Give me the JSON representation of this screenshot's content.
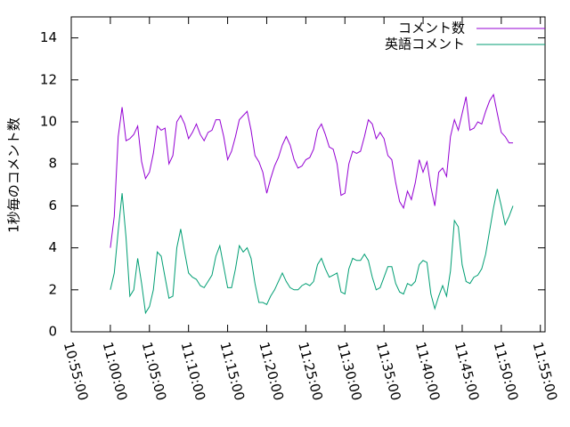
{
  "chart_data": {
    "type": "line",
    "ylabel": "1秒毎のコメント数",
    "x": [
      "11:00:00",
      "11:00:30",
      "11:01:00",
      "11:01:30",
      "11:02:00",
      "11:02:30",
      "11:03:00",
      "11:03:30",
      "11:04:00",
      "11:04:30",
      "11:05:00",
      "11:05:30",
      "11:06:00",
      "11:06:30",
      "11:07:00",
      "11:07:30",
      "11:08:00",
      "11:08:30",
      "11:09:00",
      "11:09:30",
      "11:10:00",
      "11:10:30",
      "11:11:00",
      "11:11:30",
      "11:12:00",
      "11:12:30",
      "11:13:00",
      "11:13:30",
      "11:14:00",
      "11:14:30",
      "11:15:00",
      "11:15:30",
      "11:16:00",
      "11:16:30",
      "11:17:00",
      "11:17:30",
      "11:18:00",
      "11:18:30",
      "11:19:00",
      "11:19:30",
      "11:20:00",
      "11:20:30",
      "11:21:00",
      "11:21:30",
      "11:22:00",
      "11:22:30",
      "11:23:00",
      "11:23:30",
      "11:24:00",
      "11:24:30",
      "11:25:00",
      "11:25:30",
      "11:26:00",
      "11:26:30",
      "11:27:00",
      "11:27:30",
      "11:28:00",
      "11:28:30",
      "11:29:00",
      "11:29:30",
      "11:30:00",
      "11:30:30",
      "11:31:00",
      "11:31:30",
      "11:32:00",
      "11:32:30",
      "11:33:00",
      "11:33:30",
      "11:34:00",
      "11:34:30",
      "11:35:00",
      "11:35:30",
      "11:36:00",
      "11:36:30",
      "11:37:00",
      "11:37:30",
      "11:38:00",
      "11:38:30",
      "11:39:00",
      "11:39:30",
      "11:40:00",
      "11:40:30",
      "11:41:00",
      "11:41:30",
      "11:42:00",
      "11:42:30",
      "11:43:00",
      "11:43:30",
      "11:44:00",
      "11:44:30",
      "11:45:00",
      "11:45:30",
      "11:46:00",
      "11:46:30",
      "11:47:00",
      "11:47:30",
      "11:48:00",
      "11:48:30",
      "11:49:00",
      "11:49:30",
      "11:50:00",
      "11:50:30",
      "11:51:00",
      "11:51:30"
    ],
    "series": [
      {
        "name": "コメント数",
        "color": "#9400d3",
        "values": [
          4.0,
          5.5,
          9.3,
          10.7,
          9.1,
          9.2,
          9.4,
          9.8,
          8.1,
          7.3,
          7.6,
          8.5,
          9.8,
          9.6,
          9.7,
          8.0,
          8.4,
          10.0,
          10.3,
          9.9,
          9.2,
          9.5,
          9.9,
          9.4,
          9.1,
          9.5,
          9.6,
          10.1,
          10.1,
          9.3,
          8.2,
          8.6,
          9.3,
          10.1,
          10.3,
          10.5,
          9.6,
          8.4,
          8.1,
          7.6,
          6.6,
          7.3,
          7.9,
          8.3,
          8.9,
          9.3,
          8.9,
          8.2,
          7.8,
          7.9,
          8.2,
          8.3,
          8.7,
          9.6,
          9.9,
          9.4,
          8.8,
          8.7,
          8.0,
          6.5,
          6.6,
          8.0,
          8.6,
          8.5,
          8.6,
          9.3,
          10.1,
          9.9,
          9.2,
          9.5,
          9.2,
          8.4,
          8.2,
          7.1,
          6.2,
          5.9,
          6.7,
          6.3,
          7.1,
          8.2,
          7.6,
          8.1,
          6.9,
          6.0,
          7.6,
          7.8,
          7.4,
          9.3,
          10.1,
          9.6,
          10.4,
          11.2,
          9.6,
          9.7,
          10.0,
          9.9,
          10.5,
          11.0,
          11.3,
          10.4,
          9.5,
          9.3,
          9.0,
          9.0
        ]
      },
      {
        "name": "英語コメント",
        "color": "#009e73",
        "values": [
          2.0,
          2.8,
          4.8,
          6.6,
          4.5,
          1.7,
          2.0,
          3.5,
          2.3,
          0.9,
          1.2,
          2.0,
          3.8,
          3.6,
          2.6,
          1.6,
          1.7,
          4.0,
          4.9,
          3.8,
          2.8,
          2.6,
          2.5,
          2.2,
          2.1,
          2.4,
          2.7,
          3.6,
          4.1,
          3.1,
          2.1,
          2.1,
          3.0,
          4.1,
          3.8,
          4.0,
          3.5,
          2.3,
          1.4,
          1.4,
          1.3,
          1.7,
          2.0,
          2.4,
          2.8,
          2.4,
          2.1,
          2.0,
          2.0,
          2.2,
          2.3,
          2.2,
          2.4,
          3.2,
          3.5,
          3.0,
          2.6,
          2.7,
          2.8,
          1.9,
          1.8,
          3.0,
          3.5,
          3.4,
          3.4,
          3.7,
          3.4,
          2.6,
          2.0,
          2.1,
          2.6,
          3.1,
          3.1,
          2.3,
          1.9,
          1.8,
          2.3,
          2.2,
          2.4,
          3.2,
          3.4,
          3.3,
          1.8,
          1.1,
          1.7,
          2.2,
          1.7,
          2.9,
          5.3,
          5.0,
          3.2,
          2.4,
          2.3,
          2.6,
          2.7,
          3.0,
          3.7,
          4.8,
          5.9,
          6.8,
          6.0,
          5.1,
          5.5,
          6.0
        ]
      }
    ],
    "xlim": [
      "10:55:00",
      "11:55:36"
    ],
    "xticks": [
      "10:55:00",
      "11:00:00",
      "11:05:00",
      "11:10:00",
      "11:15:00",
      "11:20:00",
      "11:25:00",
      "11:30:00",
      "11:35:00",
      "11:40:00",
      "11:45:00",
      "11:50:00",
      "11:55:00"
    ],
    "ylim": [
      0,
      15
    ],
    "yticks": [
      0,
      2,
      4,
      6,
      8,
      10,
      12,
      14
    ],
    "legend": "top-right"
  }
}
